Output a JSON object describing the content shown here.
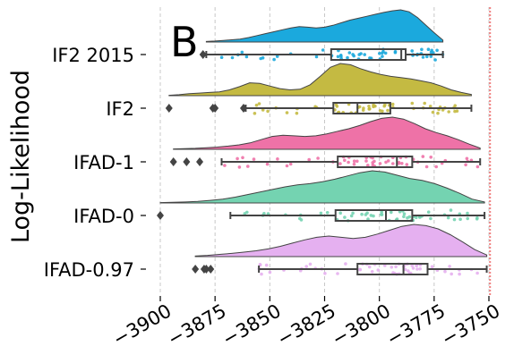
{
  "chart_data": {
    "type": "raincloud",
    "panel_label": "B",
    "ylabel": "Log-Likelihood",
    "xlim": [
      -3900,
      -3750
    ],
    "xticks": [
      -3900,
      -3875,
      -3850,
      -3825,
      -3800,
      -3775,
      -3750
    ],
    "xtick_labels": [
      "−3900",
      "−3875",
      "−3850",
      "−3825",
      "−3800",
      "−3775",
      "−3750"
    ],
    "vertical_grid": true,
    "reference_line": {
      "x": -3749.5,
      "color": "#f08080",
      "style": "dotted"
    },
    "series": [
      {
        "name": "IF2 2015",
        "color": "#1ba9dd",
        "box": {
          "whisker_low": -3879,
          "q1": -3822,
          "median": -3790,
          "q3": -3788,
          "whisker_high": -3771
        },
        "outliers": [
          -3880.5
        ],
        "kde_range": [
          -3879,
          -3771
        ],
        "density": [
          0.02,
          0.03,
          0.05,
          0.07,
          0.09,
          0.14,
          0.2,
          0.26,
          0.32,
          0.38,
          0.44,
          0.48,
          0.46,
          0.44,
          0.46,
          0.52,
          0.6,
          0.68,
          0.74,
          0.8,
          0.86,
          0.92,
          0.97,
          1.0,
          0.94,
          0.76,
          0.52,
          0.28,
          0.06
        ]
      },
      {
        "name": "IF2",
        "color": "#c4ba42",
        "box": {
          "whisker_low": -3861,
          "q1": -3821,
          "median": -3810,
          "q3": -3795,
          "whisker_high": -3758
        },
        "outliers": [
          -3896,
          -3876,
          -3875,
          -3862
        ],
        "kde_range": [
          -3896,
          -3758
        ],
        "density": [
          0.01,
          0.03,
          0.06,
          0.08,
          0.1,
          0.12,
          0.18,
          0.28,
          0.4,
          0.38,
          0.3,
          0.22,
          0.18,
          0.2,
          0.34,
          0.6,
          0.88,
          1.0,
          0.96,
          0.84,
          0.74,
          0.66,
          0.6,
          0.56,
          0.52,
          0.46,
          0.4,
          0.3,
          0.18,
          0.1,
          0.04
        ]
      },
      {
        "name": "IFAD-1",
        "color": "#ee72a7",
        "box": {
          "whisker_low": -3872,
          "q1": -3819,
          "median": -3792,
          "q3": -3785,
          "whisker_high": -3754
        },
        "outliers": [
          -3894,
          -3888,
          -3882
        ],
        "kde_range": [
          -3894,
          -3754
        ],
        "density": [
          0.01,
          0.02,
          0.03,
          0.05,
          0.07,
          0.1,
          0.14,
          0.2,
          0.3,
          0.4,
          0.44,
          0.42,
          0.4,
          0.42,
          0.48,
          0.56,
          0.64,
          0.74,
          0.86,
          0.96,
          1.0,
          0.94,
          0.8,
          0.64,
          0.52,
          0.42,
          0.3,
          0.16,
          0.04
        ]
      },
      {
        "name": "IFAD-0",
        "color": "#74d3b1",
        "box": {
          "whisker_low": -3868,
          "q1": -3820,
          "median": -3797,
          "q3": -3785,
          "whisker_high": -3752
        },
        "outliers": [
          -3900
        ],
        "kde_range": [
          -3900,
          -3752
        ],
        "density": [
          0.01,
          0.02,
          0.03,
          0.05,
          0.08,
          0.12,
          0.18,
          0.26,
          0.34,
          0.42,
          0.5,
          0.56,
          0.6,
          0.66,
          0.74,
          0.84,
          0.94,
          1.0,
          0.96,
          0.86,
          0.76,
          0.7,
          0.6,
          0.46,
          0.3,
          0.12,
          0.03
        ]
      },
      {
        "name": "IFAD-0.97",
        "color": "#e5b0f0",
        "box": {
          "whisker_low": -3855,
          "q1": -3810,
          "median": -3789,
          "q3": -3778,
          "whisker_high": -3751
        },
        "outliers": [
          -3884,
          -3880,
          -3879,
          -3877
        ],
        "kde_range": [
          -3884,
          -3751
        ],
        "density": [
          0.02,
          0.04,
          0.07,
          0.1,
          0.14,
          0.18,
          0.24,
          0.32,
          0.42,
          0.52,
          0.6,
          0.64,
          0.6,
          0.56,
          0.6,
          0.7,
          0.82,
          0.94,
          1.0,
          0.96,
          0.86,
          0.68,
          0.46,
          0.22,
          0.05
        ]
      }
    ]
  }
}
